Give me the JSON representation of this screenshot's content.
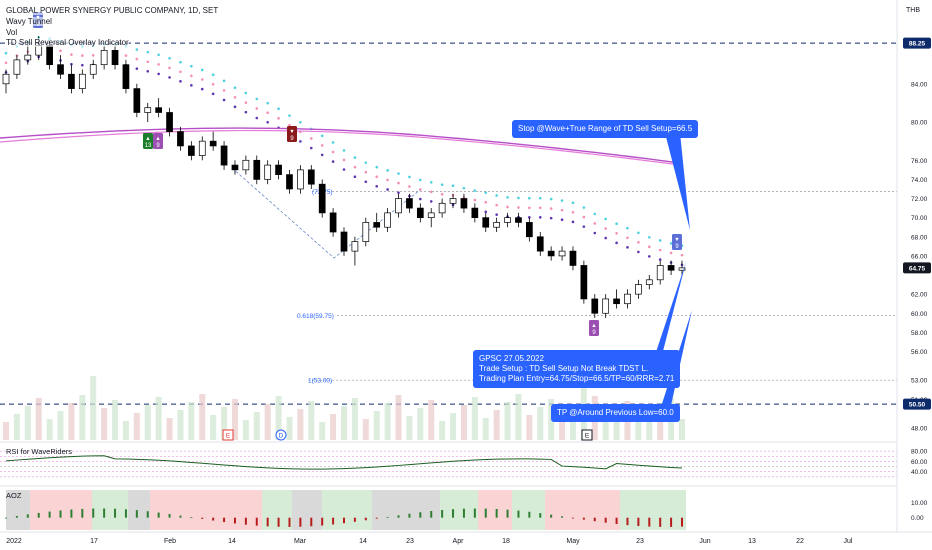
{
  "header": {
    "symbol_line": "GLOBAL POWER SYNERGY PUBLIC COMPANY, 1D, SET",
    "indicator_1": "Wavy Tunnel",
    "indicator_2": "Vol",
    "indicator_3": "TD Sell Reversal Overlay Indicator",
    "currency": "THB"
  },
  "price_axis": {
    "ticks": [
      "84.00",
      "80.00",
      "76.00",
      "74.00",
      "72.00",
      "70.00",
      "68.00",
      "66.00",
      "62.00",
      "60.00",
      "58.00",
      "56.00",
      "53.00",
      "51.00",
      "48.00"
    ],
    "tagged": [
      {
        "label": "88.25",
        "style": "level"
      },
      {
        "label": "64.75",
        "style": "last"
      },
      {
        "label": "50.50",
        "style": "level"
      }
    ]
  },
  "time_axis": {
    "ticks": [
      "2022",
      "17",
      "Feb",
      "14",
      "Mar",
      "14",
      "23",
      "Apr",
      "18",
      "May",
      "23",
      "Jun",
      "13",
      "22",
      "Jul"
    ]
  },
  "fib_labels": [
    {
      "text": "(72.75)"
    },
    {
      "text": "0.618(59.75)"
    },
    {
      "text": "1(53.00)"
    }
  ],
  "callouts": {
    "stop": "Stop @Wave+True Range of TD Sell Setup=66.5",
    "setup_line1": "GPSC 27.05.2022",
    "setup_line2": "Trade Setup : TD Sell Setup Not Break TDST L.",
    "setup_line3": "Trading Plan Entry=64.75/Stop=66.5/TP=60/RRR=2.71",
    "tp": "TP @Around Previous Low=60.0"
  },
  "td_markers": [
    {
      "arrow": "▲",
      "num": "13",
      "type": "buy13"
    },
    {
      "arrow": "▲",
      "num": "9",
      "type": "buy9"
    },
    {
      "arrow": "▼",
      "num": "9",
      "type": "sell9"
    },
    {
      "arrow": "▲",
      "num": "9",
      "type": "buy9b"
    },
    {
      "arrow": "▼",
      "num": "9",
      "type": "sell9b"
    },
    {
      "arrow": "▼",
      "num": "9",
      "type": "sell9c"
    }
  ],
  "event_markers": [
    "E",
    "D",
    "E"
  ],
  "rsi_pane": {
    "title": "RSI for WaveRiders",
    "ticks": [
      "80.00",
      "60.00",
      "40.00"
    ]
  },
  "ao_pane": {
    "title": "AOZ",
    "ticks": [
      "10.00",
      "0.00"
    ]
  },
  "chart_data": {
    "type": "candlestick",
    "x_range": [
      "2022-01",
      "2022-07"
    ],
    "ylim": [
      48.0,
      89.0
    ],
    "levels": [
      88.25,
      72.75,
      59.75,
      53.0,
      50.5
    ],
    "last_price": 64.75,
    "trade_plan": {
      "entry": 64.75,
      "stop": 66.5,
      "tp": 60.0,
      "rrr": 2.71
    },
    "ohlc": [
      [
        84.0,
        85.5,
        83.0,
        85.0
      ],
      [
        85.0,
        87.0,
        84.5,
        86.5
      ],
      [
        86.5,
        88.5,
        86.0,
        87.0
      ],
      [
        87.0,
        89.0,
        86.5,
        88.0
      ],
      [
        88.0,
        88.5,
        85.5,
        86.0
      ],
      [
        86.0,
        87.0,
        84.5,
        85.0
      ],
      [
        85.0,
        86.0,
        83.0,
        83.5
      ],
      [
        83.5,
        85.5,
        83.0,
        85.0
      ],
      [
        85.0,
        86.5,
        84.5,
        86.0
      ],
      [
        86.0,
        88.0,
        85.5,
        87.5
      ],
      [
        87.5,
        88.0,
        85.5,
        86.0
      ],
      [
        86.0,
        86.5,
        83.0,
        83.5
      ],
      [
        83.5,
        84.0,
        80.5,
        81.0
      ],
      [
        81.0,
        82.0,
        80.0,
        81.5
      ],
      [
        81.5,
        82.5,
        80.5,
        81.0
      ],
      [
        81.0,
        81.5,
        78.5,
        79.0
      ],
      [
        79.0,
        79.5,
        77.0,
        77.5
      ],
      [
        77.5,
        78.0,
        76.0,
        76.5
      ],
      [
        76.5,
        78.5,
        76.0,
        78.0
      ],
      [
        78.0,
        79.0,
        77.0,
        77.5
      ],
      [
        77.5,
        78.0,
        75.0,
        75.5
      ],
      [
        75.5,
        76.0,
        74.5,
        75.0
      ],
      [
        75.0,
        76.5,
        74.5,
        76.0
      ],
      [
        76.0,
        76.5,
        73.5,
        74.0
      ],
      [
        74.0,
        76.0,
        73.5,
        75.5
      ],
      [
        75.5,
        76.0,
        74.0,
        74.5
      ],
      [
        74.5,
        75.0,
        72.5,
        73.0
      ],
      [
        73.0,
        75.5,
        72.5,
        75.0
      ],
      [
        75.0,
        75.5,
        73.0,
        73.5
      ],
      [
        73.5,
        74.0,
        70.0,
        70.5
      ],
      [
        70.5,
        71.0,
        68.0,
        68.5
      ],
      [
        68.5,
        69.0,
        66.0,
        66.5
      ],
      [
        66.5,
        68.0,
        65.0,
        67.5
      ],
      [
        67.5,
        70.0,
        67.0,
        69.5
      ],
      [
        69.5,
        70.5,
        68.5,
        69.0
      ],
      [
        69.0,
        71.0,
        68.5,
        70.5
      ],
      [
        70.5,
        72.5,
        70.0,
        72.0
      ],
      [
        72.0,
        72.5,
        70.5,
        71.0
      ],
      [
        71.0,
        71.5,
        69.5,
        70.0
      ],
      [
        70.0,
        71.0,
        69.0,
        70.5
      ],
      [
        70.5,
        72.0,
        70.0,
        71.5
      ],
      [
        71.5,
        72.5,
        71.0,
        72.0
      ],
      [
        72.0,
        72.5,
        70.5,
        71.0
      ],
      [
        71.0,
        71.5,
        69.5,
        70.0
      ],
      [
        70.0,
        70.5,
        68.5,
        69.0
      ],
      [
        69.0,
        70.0,
        68.5,
        69.5
      ],
      [
        69.5,
        70.5,
        69.0,
        70.0
      ],
      [
        70.0,
        70.5,
        69.0,
        69.5
      ],
      [
        69.5,
        70.0,
        67.5,
        68.0
      ],
      [
        68.0,
        68.5,
        66.0,
        66.5
      ],
      [
        66.5,
        67.0,
        65.5,
        66.0
      ],
      [
        66.0,
        67.0,
        65.5,
        66.5
      ],
      [
        66.5,
        67.0,
        64.5,
        65.0
      ],
      [
        65.0,
        65.5,
        61.0,
        61.5
      ],
      [
        61.5,
        62.0,
        59.5,
        60.0
      ],
      [
        60.0,
        62.0,
        59.5,
        61.5
      ],
      [
        61.5,
        62.5,
        60.5,
        61.0
      ],
      [
        61.0,
        62.5,
        60.5,
        62.0
      ],
      [
        62.0,
        63.5,
        61.5,
        63.0
      ],
      [
        63.0,
        64.0,
        62.5,
        63.5
      ],
      [
        63.5,
        65.5,
        63.0,
        65.0
      ],
      [
        65.0,
        65.5,
        64.0,
        64.5
      ],
      [
        64.5,
        65.5,
        64.0,
        64.75
      ]
    ]
  }
}
